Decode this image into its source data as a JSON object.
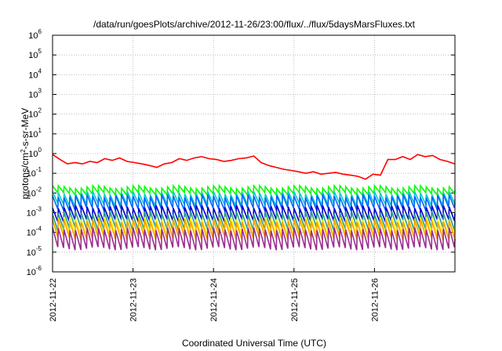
{
  "chart_data": {
    "type": "line",
    "title": "/data/run/goesPlots/archive/2012-11-26/23:00/flux/../flux/5daysMarsFluxes.txt",
    "xlabel": "Coordinated Universal Time (UTC)",
    "ylabel": {
      "base": "protons/cm",
      "sup": "2",
      "rest": "-s-sr-MeV"
    },
    "x_range": [
      "2012-11-22",
      "2012-11-27"
    ],
    "x_ticks": [
      "2012-11-22",
      "2012-11-23",
      "2012-11-24",
      "2012-11-25",
      "2012-11-26"
    ],
    "y_scale": "log",
    "y_range_exponent": [
      -6,
      6
    ],
    "y_ticks": [
      {
        "base": "10",
        "exp": "-6"
      },
      {
        "base": "10",
        "exp": "-5"
      },
      {
        "base": "10",
        "exp": "-4"
      },
      {
        "base": "10",
        "exp": "-3"
      },
      {
        "base": "10",
        "exp": "-2"
      },
      {
        "base": "10",
        "exp": "-1"
      },
      {
        "base": "10",
        "exp": "0"
      },
      {
        "base": "10",
        "exp": "1"
      },
      {
        "base": "10",
        "exp": "2"
      },
      {
        "base": "10",
        "exp": "3"
      },
      {
        "base": "10",
        "exp": "4"
      },
      {
        "base": "10",
        "exp": "5"
      },
      {
        "base": "10",
        "exp": "6"
      }
    ],
    "grid": true,
    "series": [
      {
        "color": "#ff0000",
        "values": [
          0.9,
          0.5,
          0.3,
          0.35,
          0.3,
          0.4,
          0.35,
          0.55,
          0.45,
          0.6,
          0.4,
          0.35,
          0.3,
          0.25,
          0.2,
          0.3,
          0.35,
          0.55,
          0.45,
          0.6,
          0.7,
          0.55,
          0.5,
          0.4,
          0.45,
          0.55,
          0.6,
          0.75,
          0.35,
          0.25,
          0.2,
          0.16,
          0.14,
          0.12,
          0.1,
          0.12,
          0.09,
          0.1,
          0.11,
          0.09,
          0.08,
          0.07,
          0.05,
          0.09,
          0.08,
          0.5,
          0.5,
          0.7,
          0.5,
          0.9,
          0.7,
          0.8,
          0.5,
          0.4,
          0.3
        ]
      },
      {
        "color": "#00ff00",
        "peak": 0.02,
        "trough": 0.009
      },
      {
        "color": "#00cccc",
        "peak": 0.01,
        "trough": 0.0025
      },
      {
        "color": "#0066ff",
        "peak": 0.007,
        "trough": 0.0015
      },
      {
        "color": "#0000cc",
        "peak": 0.002,
        "trough": 0.0004
      },
      {
        "color": "#2a9d8f",
        "peak": 0.001,
        "trough": 0.00015
      },
      {
        "color": "#ffff00",
        "peak": 0.0005,
        "trough": 8e-05
      },
      {
        "color": "#ffa000",
        "peak": 0.0004,
        "trough": 5e-05
      },
      {
        "color": "#9b2d8f",
        "peak": 0.00015,
        "trough": 1.5e-05
      }
    ]
  }
}
